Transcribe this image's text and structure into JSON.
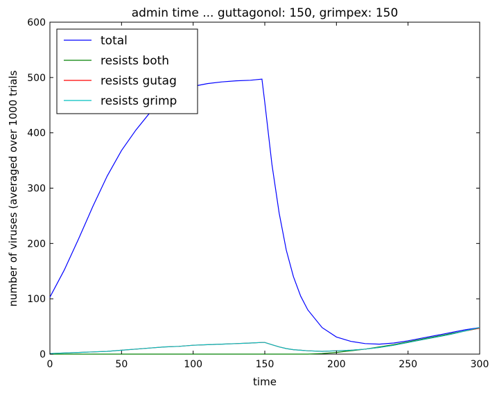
{
  "chart_data": {
    "type": "line",
    "title": "admin time ... guttagonol: 150, grimpex: 150",
    "xlabel": "time",
    "ylabel": "number of viruses (averaged over 1000 trials",
    "xlim": [
      0,
      300
    ],
    "ylim": [
      0,
      600
    ],
    "xticks": [
      0,
      50,
      100,
      150,
      200,
      250,
      300
    ],
    "yticks": [
      0,
      100,
      200,
      300,
      400,
      500,
      600
    ],
    "grid": false,
    "legend_position": "top-left",
    "x": [
      0,
      10,
      20,
      30,
      40,
      50,
      60,
      70,
      80,
      90,
      100,
      110,
      120,
      130,
      140,
      148,
      150,
      155,
      160,
      165,
      170,
      175,
      180,
      190,
      200,
      210,
      220,
      230,
      240,
      250,
      260,
      270,
      280,
      290,
      300
    ],
    "series": [
      {
        "name": "total",
        "color": "#0000ff",
        "values": [
          103,
          152,
          208,
          267,
          322,
          368,
          405,
          437,
          460,
          475,
          484,
          489,
          492,
          494,
          495,
          497,
          455,
          343,
          255,
          188,
          140,
          105,
          80,
          48,
          31,
          23,
          19,
          18,
          20,
          24,
          29,
          34,
          39,
          44,
          48
        ]
      },
      {
        "name": "resists both",
        "color": "#008000",
        "values": [
          0,
          0,
          0,
          0,
          0,
          0,
          0,
          0,
          0,
          0,
          0,
          0,
          0,
          0,
          0,
          0,
          0,
          0,
          0,
          0,
          0,
          0,
          0,
          1,
          3,
          6,
          9,
          13,
          17,
          22,
          27,
          32,
          37,
          42,
          47
        ]
      },
      {
        "name": "resists gutag",
        "color": "#ff0000",
        "values": [
          1,
          2,
          3,
          4,
          5,
          7,
          9,
          11,
          13,
          14,
          16,
          17,
          18,
          19,
          20,
          21,
          21,
          17,
          13,
          10,
          8,
          7,
          6,
          5,
          6,
          7,
          9,
          12,
          16,
          21,
          26,
          31,
          36,
          42,
          47
        ]
      },
      {
        "name": "resists grimp",
        "color": "#00bfbf",
        "values": [
          1,
          2,
          3,
          4,
          5,
          7,
          9,
          11,
          13,
          14,
          16,
          17,
          18,
          19,
          20,
          21,
          21,
          17,
          13,
          10,
          8,
          7,
          6,
          5,
          6,
          7,
          9,
          12,
          16,
          21,
          26,
          31,
          36,
          42,
          48
        ]
      }
    ]
  }
}
